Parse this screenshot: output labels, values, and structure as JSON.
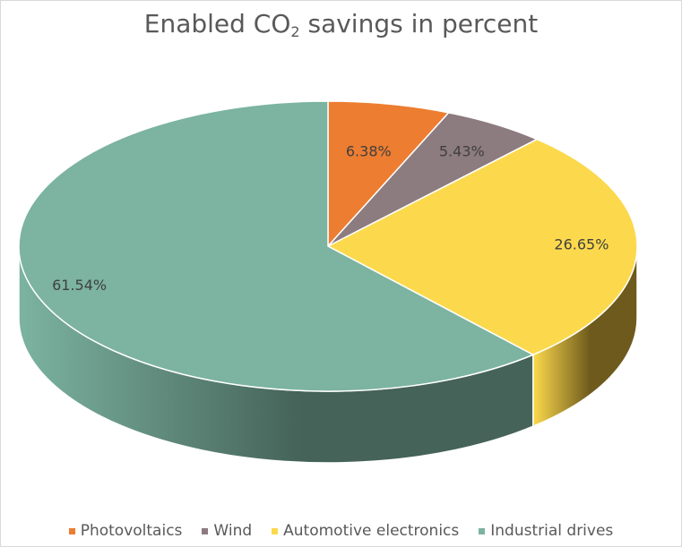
{
  "chart_data": {
    "type": "pie",
    "title_prefix": "Enabled CO",
    "title_subscript": "2",
    "title_suffix": " savings in percent",
    "categories": [
      "Photovoltaics",
      "Wind",
      "Automotive electronics",
      "Industrial drives"
    ],
    "values": [
      6.38,
      5.43,
      26.65,
      61.54
    ],
    "data_labels": [
      "6.38%",
      "5.43%",
      "26.65%",
      "61.54%"
    ],
    "colors": [
      "#ed7d31",
      "#8c7b7f",
      "#fcd94c",
      "#7cb3a1"
    ],
    "side_colors": [
      "#b35a1f",
      "#5e5053",
      "#6e5a1c",
      "#456358"
    ],
    "legend_position": "bottom",
    "style": "3d"
  }
}
